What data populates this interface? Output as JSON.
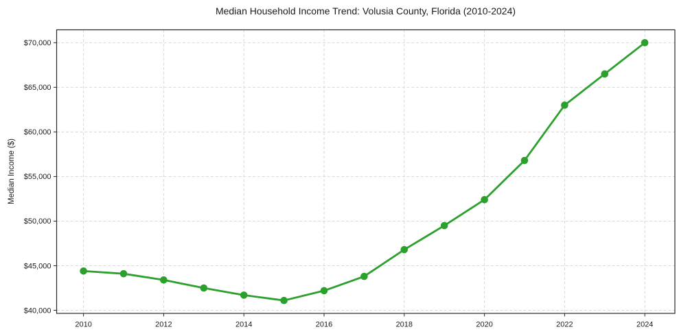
{
  "page": {
    "background": "#ffffff"
  },
  "chart_data": {
    "type": "line",
    "title": "Median Household Income Trend: Volusia County, Florida (2010-2024)",
    "xlabel": "",
    "ylabel": "Median Income ($)",
    "x": [
      2010,
      2011,
      2012,
      2013,
      2014,
      2015,
      2016,
      2017,
      2018,
      2019,
      2020,
      2021,
      2022,
      2023,
      2024
    ],
    "series": [
      {
        "name": "Median Household Income",
        "values": [
          44400,
          44100,
          43400,
          42500,
          41700,
          41100,
          42200,
          43800,
          46800,
          49500,
          52400,
          56800,
          63000,
          66500,
          70000
        ]
      }
    ],
    "x_ticks": [
      2010,
      2012,
      2014,
      2016,
      2018,
      2020,
      2022,
      2024
    ],
    "x_tick_labels": [
      "2010",
      "2012",
      "2014",
      "2016",
      "2018",
      "2020",
      "2022",
      "2024"
    ],
    "y_ticks": [
      40000,
      45000,
      50000,
      55000,
      60000,
      65000,
      70000
    ],
    "y_tick_labels": [
      "$40,000",
      "$45,000",
      "$50,000",
      "$55,000",
      "$60,000",
      "$65,000",
      "$70,000"
    ],
    "xlim": [
      2009.33,
      2024.75
    ],
    "ylim": [
      39655,
      71445
    ],
    "grid": true,
    "grid_style": "dashed",
    "legend": "none",
    "marker": "circle",
    "line_color": "#2ca02c",
    "grid_color": "#d3d3d3",
    "axis_color": "#262626",
    "text_color": "#1a1a1a"
  }
}
